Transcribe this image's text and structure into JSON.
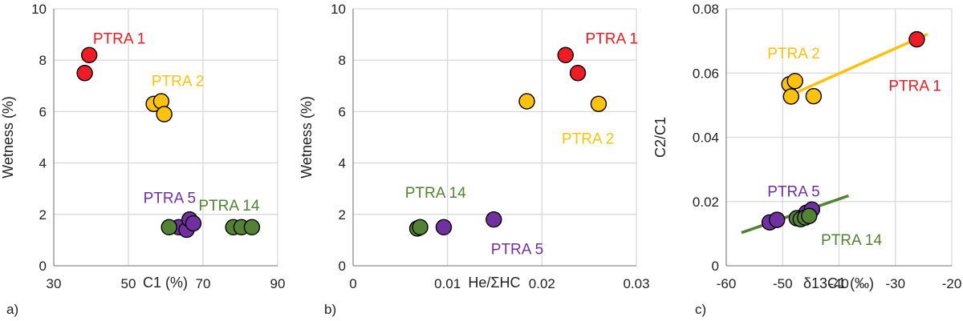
{
  "chart_data": [
    {
      "type": "scatter",
      "panel_label": "a)",
      "xlabel": "C1 (%)",
      "ylabel": "Wetness (%)",
      "xlim": [
        30,
        90
      ],
      "ylim": [
        0,
        10
      ],
      "xticks": [
        "30",
        "50",
        "70",
        "90"
      ],
      "yticks": [
        "0",
        "2",
        "4",
        "6",
        "8",
        "10"
      ],
      "grid": true,
      "series": [
        {
          "name": "PTRA 1",
          "color": "#ee1c24",
          "points": [
            {
              "x": 39.5,
              "y": 8.2
            },
            {
              "x": 38.3,
              "y": 7.5
            }
          ]
        },
        {
          "name": "PTRA 2",
          "color": "#ffc20e",
          "points": [
            {
              "x": 56.8,
              "y": 6.3
            },
            {
              "x": 58.8,
              "y": 6.4
            },
            {
              "x": 59.6,
              "y": 5.9
            }
          ]
        },
        {
          "name": "PTRA 5",
          "color": "#7030a0",
          "points": [
            {
              "x": 63.5,
              "y": 1.5
            },
            {
              "x": 65.6,
              "y": 1.4
            },
            {
              "x": 66.4,
              "y": 1.8
            },
            {
              "x": 67.4,
              "y": 1.65
            }
          ]
        },
        {
          "name": "PTRA 14",
          "color": "#548235",
          "points": [
            {
              "x": 60.9,
              "y": 1.5
            },
            {
              "x": 78.1,
              "y": 1.5
            },
            {
              "x": 80.3,
              "y": 1.5
            },
            {
              "x": 83.1,
              "y": 1.5
            }
          ]
        }
      ],
      "annotations": [
        {
          "text": "PTRA 1",
          "series": "PTRA 1",
          "x": 40.5,
          "y": 8.65
        },
        {
          "text": "PTRA 2",
          "series": "PTRA 2",
          "x": 56.2,
          "y": 7.0
        },
        {
          "text": "PTRA 5",
          "series": "PTRA 5",
          "x": 54.0,
          "y": 2.45
        },
        {
          "text": "PTRA 14",
          "series": "PTRA 14",
          "x": 68.8,
          "y": 2.15
        }
      ]
    },
    {
      "type": "scatter",
      "panel_label": "b)",
      "xlabel": "He/ΣHC",
      "ylabel": "Wetness (%)",
      "xlim": [
        0,
        0.03
      ],
      "ylim": [
        0,
        10
      ],
      "xticks": [
        "0",
        "0.01",
        "0.02",
        "0.03"
      ],
      "yticks": [
        "0",
        "2",
        "4",
        "6",
        "8",
        "10"
      ],
      "grid": true,
      "series": [
        {
          "name": "PTRA 1",
          "color": "#ee1c24",
          "points": [
            {
              "x": 0.0225,
              "y": 8.2
            },
            {
              "x": 0.0238,
              "y": 7.5
            }
          ]
        },
        {
          "name": "PTRA 2",
          "color": "#ffc20e",
          "points": [
            {
              "x": 0.0184,
              "y": 6.4
            },
            {
              "x": 0.026,
              "y": 6.3
            }
          ]
        },
        {
          "name": "PTRA 5",
          "color": "#7030a0",
          "points": [
            {
              "x": 0.0096,
              "y": 1.5
            },
            {
              "x": 0.0149,
              "y": 1.8
            }
          ]
        },
        {
          "name": "PTRA 14",
          "color": "#548235",
          "points": [
            {
              "x": 0.0068,
              "y": 1.45
            },
            {
              "x": 0.0071,
              "y": 1.5
            }
          ]
        }
      ],
      "annotations": [
        {
          "text": "PTRA 1",
          "series": "PTRA 1",
          "x": 0.0246,
          "y": 8.65
        },
        {
          "text": "PTRA 2",
          "series": "PTRA 2",
          "x": 0.0221,
          "y": 4.75
        },
        {
          "text": "PTRA 5",
          "series": "PTRA 5",
          "x": 0.0146,
          "y": 0.45
        },
        {
          "text": "PTRA 14",
          "series": "PTRA 14",
          "x": 0.0055,
          "y": 2.65
        }
      ]
    },
    {
      "type": "scatter",
      "panel_label": "c)",
      "xlabel": "δ13C1 (‰)",
      "ylabel": "C2/C1",
      "xlim": [
        -60,
        -20
      ],
      "ylim": [
        0,
        0.08
      ],
      "xticks": [
        "-60",
        "-50",
        "-40",
        "-30",
        "-20"
      ],
      "yticks": [
        "0",
        "0.02",
        "0.04",
        "0.06",
        "0.08"
      ],
      "grid": true,
      "series": [
        {
          "name": "PTRA 1",
          "color": "#ee1c24",
          "points": [
            {
              "x": -26.2,
              "y": 0.0705
            }
          ]
        },
        {
          "name": "PTRA 2",
          "color": "#ffc20e",
          "points": [
            {
              "x": -48.8,
              "y": 0.0565
            },
            {
              "x": -47.8,
              "y": 0.0575
            },
            {
              "x": -48.5,
              "y": 0.0527
            },
            {
              "x": -44.5,
              "y": 0.0528
            }
          ]
        },
        {
          "name": "PTRA 5",
          "color": "#7030a0",
          "points": [
            {
              "x": -52.3,
              "y": 0.0135
            },
            {
              "x": -51.0,
              "y": 0.0143
            },
            {
              "x": -45.8,
              "y": 0.0165
            },
            {
              "x": -44.8,
              "y": 0.0175
            }
          ]
        },
        {
          "name": "PTRA 14",
          "color": "#548235",
          "points": [
            {
              "x": -47.5,
              "y": 0.0148
            },
            {
              "x": -46.8,
              "y": 0.0145
            },
            {
              "x": -46.0,
              "y": 0.015
            },
            {
              "x": -45.3,
              "y": 0.0155
            }
          ]
        }
      ],
      "trendlines": [
        {
          "series": "PTRA 2",
          "color": "#ffc20e",
          "x": [
            -49.4,
            -24.3
          ],
          "y": [
            0.0525,
            0.0721
          ]
        },
        {
          "series": "PTRA 14",
          "color": "#548235",
          "x": [
            -57.3,
            -38.3
          ],
          "y": [
            0.0103,
            0.0218
          ]
        }
      ],
      "annotations": [
        {
          "text": "PTRA 1",
          "series": "PTRA 1",
          "x": -31.2,
          "y": 0.0545
        },
        {
          "text": "PTRA 2",
          "series": "PTRA 2",
          "x": -52.7,
          "y": 0.0645
        },
        {
          "text": "PTRA 5",
          "series": "PTRA 5",
          "x": -52.7,
          "y": 0.0215
        },
        {
          "text": "PTRA 14",
          "series": "PTRA 14",
          "x": -43.2,
          "y": 0.0065
        }
      ]
    }
  ]
}
